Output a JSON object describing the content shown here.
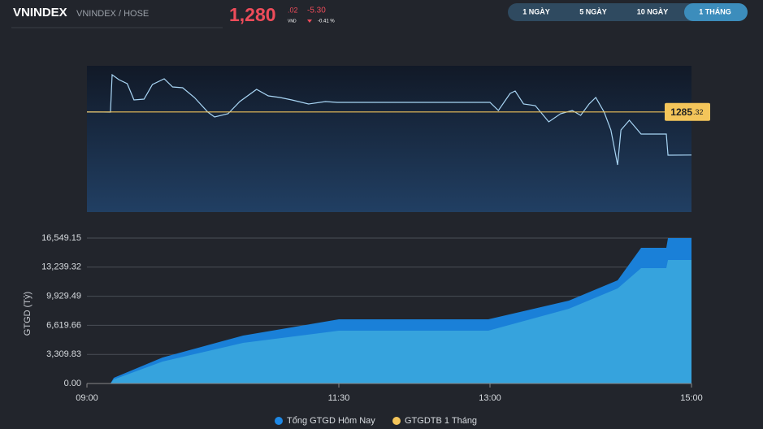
{
  "header": {
    "symbol": "VNINDEX",
    "exchange": "VNINDEX / HOSE",
    "price": "1,280",
    "price_decimal": ".02",
    "unit": "VND",
    "change": "-5.30",
    "change_pct": "-0.41 %"
  },
  "range_buttons": {
    "items": [
      "1 NGÀY",
      "5 NGÀY",
      "10 NGÀY",
      "1 THÁNG"
    ],
    "active": 3
  },
  "chart_data": [
    {
      "type": "line",
      "color": "#a9d6f5",
      "x": [
        540,
        554,
        555,
        559,
        564,
        568,
        574,
        579,
        586,
        591,
        597,
        604,
        612,
        616,
        624,
        631,
        641,
        648,
        655,
        662,
        672,
        682,
        689,
        780,
        785,
        792,
        795,
        800,
        807,
        815,
        822,
        829,
        834,
        839,
        843,
        848,
        852,
        856,
        858,
        863,
        870,
        885,
        886,
        900
      ],
      "values": [
        1285.32,
        1285.3,
        1289.9,
        1289.3,
        1288.8,
        1286.8,
        1286.9,
        1288.7,
        1289.4,
        1288.4,
        1288.3,
        1287.1,
        1285.3,
        1284.7,
        1285.1,
        1286.6,
        1288.1,
        1287.3,
        1287.1,
        1286.8,
        1286.3,
        1286.6,
        1286.5,
        1286.5,
        1285.5,
        1287.6,
        1287.9,
        1286.3,
        1286.1,
        1284.1,
        1285.1,
        1285.5,
        1284.9,
        1286.3,
        1287.1,
        1285.3,
        1283.1,
        1278.8,
        1283.1,
        1284.3,
        1282.6,
        1282.6,
        1280.0,
        1280.02
      ],
      "xlim": [
        540,
        900
      ],
      "ylim": [
        1273,
        1291
      ],
      "reference": {
        "value": 1285.32,
        "label": "1285",
        "label_decimal": ".32",
        "color": "#f4c55a"
      }
    },
    {
      "type": "area",
      "y_label": "GTGD (Tỷ)",
      "x": [
        540,
        554,
        556,
        585,
        633,
        690,
        779,
        827,
        856,
        870,
        885,
        886,
        900
      ],
      "series": [
        {
          "name": "Tổng GTGD Hôm Nay",
          "color": "#1e88e5",
          "fill": "#1a80d8",
          "values": [
            0,
            0,
            647,
            2958,
            5454,
            7303,
            7303,
            9430,
            11741,
            15439,
            15439,
            16549,
            16549
          ]
        },
        {
          "name": "GTGDTB 1 Tháng",
          "color": "#f4c55a",
          "fill": "#36a3dd",
          "values": [
            0,
            0,
            462,
            2496,
            4623,
            6009,
            6009,
            8505,
            10817,
            13128,
            13128,
            14053,
            14053
          ]
        }
      ],
      "xlim": [
        540,
        900
      ],
      "xticks": [
        {
          "value": 540,
          "label": "09:00"
        },
        {
          "value": 690,
          "label": "11:30"
        },
        {
          "value": 780,
          "label": "13:00"
        },
        {
          "value": 900,
          "label": "15:00"
        }
      ],
      "ylim": [
        0,
        16549.15
      ],
      "yticks": [
        {
          "value": 0,
          "label": "0.00"
        },
        {
          "value": 3309.83,
          "label": "3,309.83"
        },
        {
          "value": 6619.66,
          "label": "6,619.66"
        },
        {
          "value": 9929.49,
          "label": "9,929.49"
        },
        {
          "value": 13239.32,
          "label": "13,239.32"
        },
        {
          "value": 16549.15,
          "label": "16,549.15"
        }
      ],
      "grid": true
    }
  ]
}
